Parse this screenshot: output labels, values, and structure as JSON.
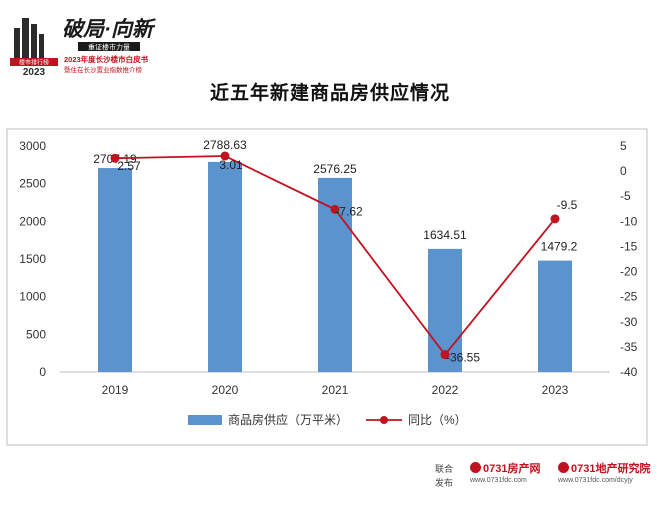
{
  "logo": {
    "slogan": "破局·向新",
    "tag_rank": "楼市排行榜",
    "year": "2023",
    "subtitle": "重证楼市力量",
    "line1": "2023年度长沙楼市白皮书",
    "line2": "暨住在长沙置业指数推介榜"
  },
  "page_title": "近五年新建商品房供应情况",
  "footer": {
    "co_label_1": "联合",
    "co_label_2": "发布",
    "partner1_num": "0731",
    "partner1_name": "房产网",
    "partner1_url": "www.0731fdc.com",
    "partner2_num": "0731",
    "partner2_name": "地产研究院",
    "partner2_url": "www.0731fdc.com/dcyjy"
  },
  "colors": {
    "bar": "#5b93cf",
    "line": "#c1121f",
    "frame": "#bfbfbf"
  },
  "chart_data": {
    "type": "bar",
    "title": "近五年新建商品房供应情况",
    "categories": [
      "2019",
      "2020",
      "2021",
      "2022",
      "2023"
    ],
    "series": [
      {
        "name": "商品房供应（万平米）",
        "type": "bar",
        "axis": "left",
        "values": [
          2707.19,
          2788.63,
          2576.25,
          1634.51,
          1479.2
        ],
        "labels": [
          "2707.19",
          "2788.63",
          "2576.25",
          "1634.51",
          "1479.2"
        ]
      },
      {
        "name": "同比（%）",
        "type": "line",
        "axis": "right",
        "values": [
          2.57,
          3.01,
          -7.62,
          -36.55,
          -9.5
        ],
        "labels": [
          "2.57",
          "3.01",
          "-7.62",
          "-36.55",
          "-9.5"
        ]
      }
    ],
    "ylim_left": [
      0,
      3000
    ],
    "yticks_left": [
      "0",
      "500",
      "1000",
      "1500",
      "2000",
      "2500",
      "3000"
    ],
    "ylim_right": [
      -40,
      5
    ],
    "yticks_right": [
      "5",
      "0",
      "-5",
      "-10",
      "-15",
      "-20",
      "-25",
      "-30",
      "-35",
      "-40"
    ],
    "grid": false,
    "legend": "bottom"
  }
}
